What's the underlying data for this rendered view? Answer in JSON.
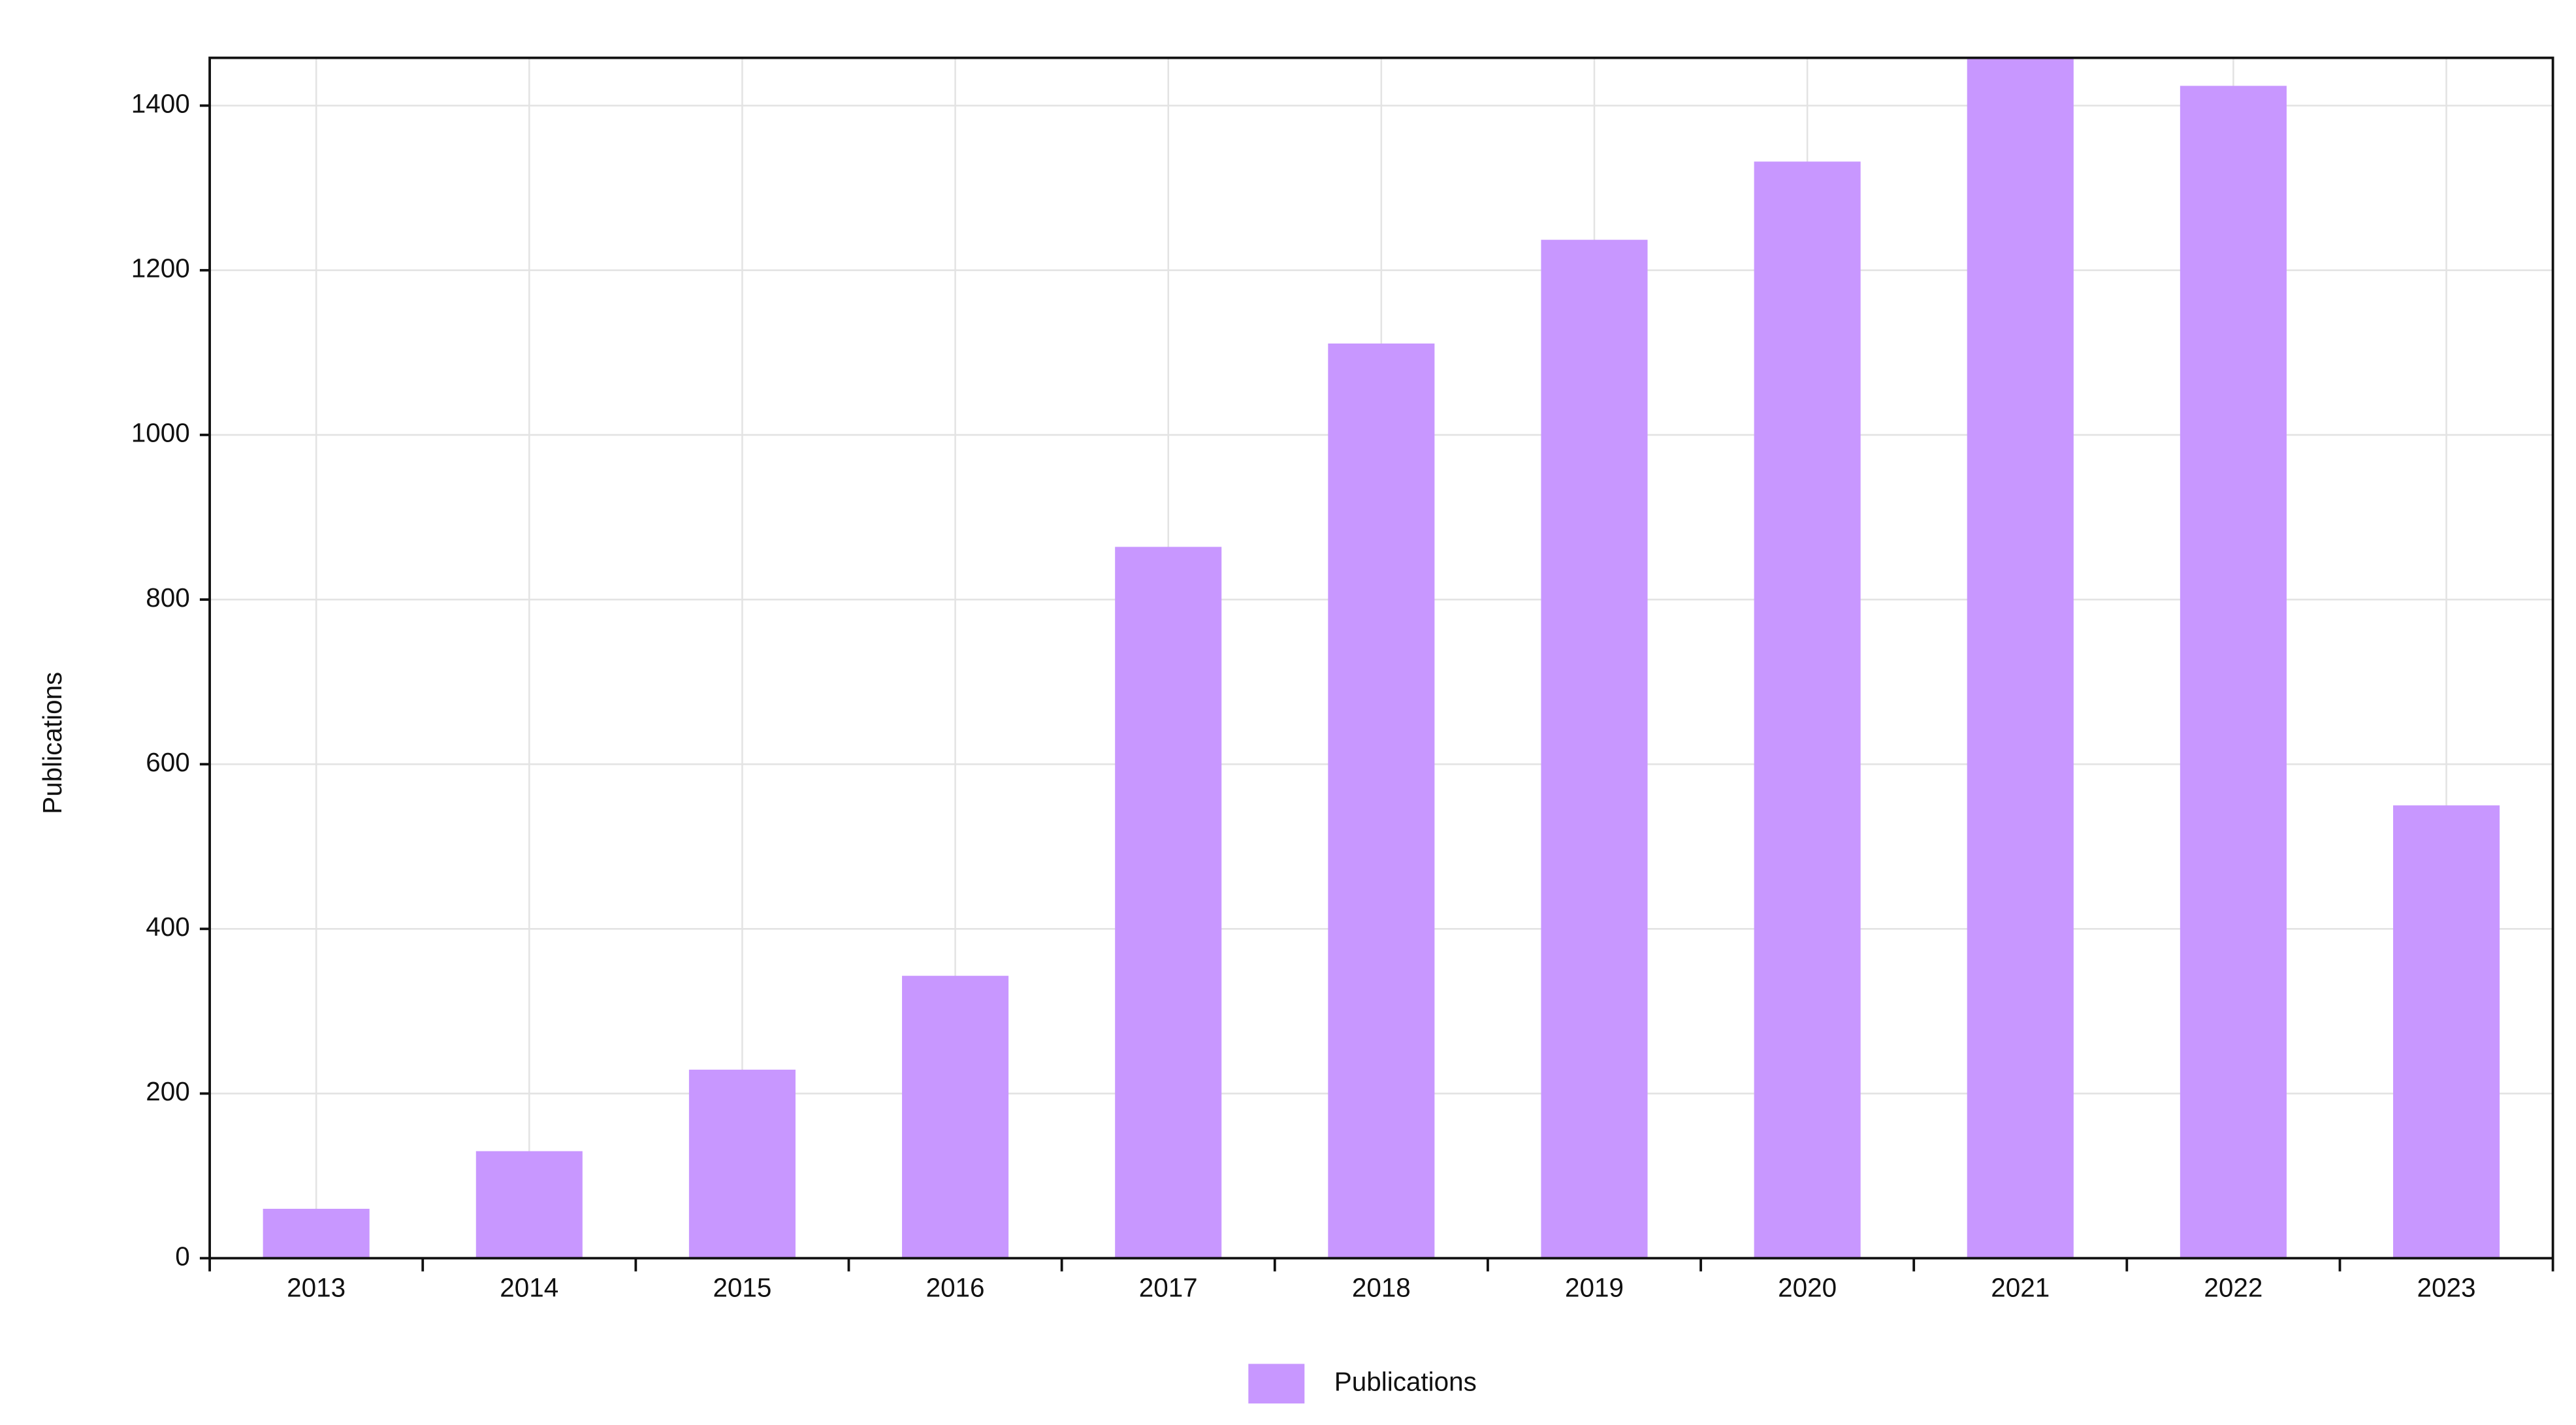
{
  "chart_data": {
    "type": "bar",
    "y_label": "Publications",
    "categories": [
      "2013",
      "2014",
      "2015",
      "2016",
      "2017",
      "2018",
      "2019",
      "2020",
      "2021",
      "2022",
      "2023"
    ],
    "series": [
      {
        "name": "Publications",
        "color": "#c897ff",
        "values": [
          60,
          130,
          229,
          343,
          864,
          1111,
          1237,
          1332,
          1460,
          1424,
          550
        ]
      }
    ],
    "ylim": [
      0,
      1458
    ],
    "yticks": [
      0,
      200,
      400,
      600,
      800,
      1000,
      1200,
      1400
    ],
    "grid": true,
    "legend": "bottom"
  }
}
